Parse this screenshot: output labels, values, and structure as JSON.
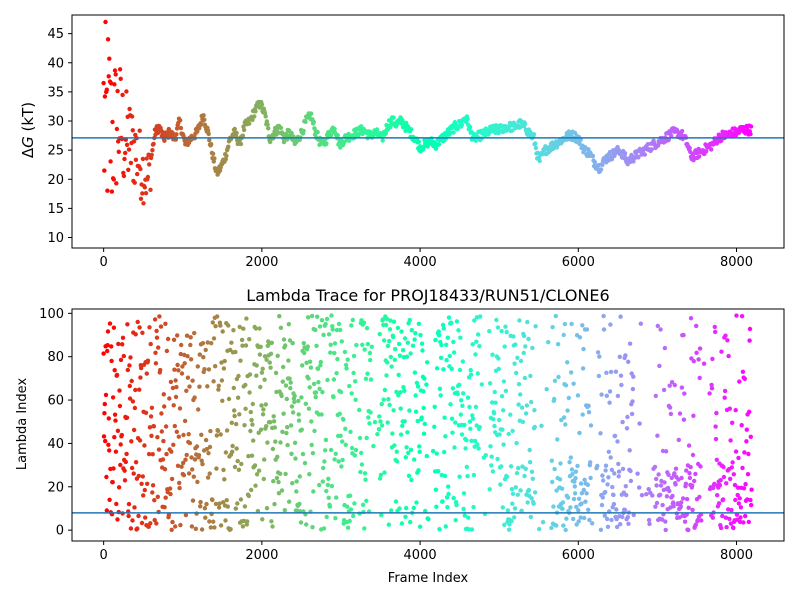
{
  "chart_data": [
    {
      "type": "scatter",
      "title": "",
      "xlabel": "",
      "ylabel": "ΔG (kT)",
      "ylabel_parts": {
        "delta": "Δ",
        "var": "G",
        "unit": " (kT)"
      },
      "xlim": [
        -400,
        8600
      ],
      "ylim": [
        8.2,
        48.2
      ],
      "xticks": [
        0,
        2000,
        4000,
        6000,
        8000
      ],
      "yticks": [
        10,
        15,
        20,
        25,
        30,
        35,
        40,
        45
      ],
      "reference_line": {
        "y": 27.1,
        "color": "#1f77b4"
      },
      "colormap": "rainbow_r (red at start → purple at end)",
      "n_frames": 8200,
      "series_envelope": {
        "x": [
          0,
          30,
          60,
          100,
          150,
          200,
          260,
          330,
          400,
          480,
          560,
          650,
          700,
          760,
          830,
          900,
          960,
          1030,
          1100,
          1180,
          1260,
          1320,
          1380,
          1430,
          1480,
          1540,
          1600,
          1660,
          1720,
          1780,
          1850,
          1920,
          1980,
          2040,
          2100,
          2160,
          2220,
          2280,
          2350,
          2420,
          2500,
          2560,
          2620,
          2680,
          2750,
          2800,
          2860,
          2920,
          2980,
          3050,
          3120,
          3200,
          3280,
          3360,
          3440,
          3520,
          3600,
          3650,
          3700,
          3760,
          3820,
          3880,
          3940,
          4000,
          4060,
          4120,
          4200,
          4280,
          4360,
          4440,
          4520,
          4560,
          4600,
          4640,
          4680,
          4760,
          4840,
          4920,
          5000,
          5080,
          5140,
          5200,
          5260,
          5320,
          5380,
          5440,
          5500,
          5540,
          5580,
          5640,
          5700,
          5760,
          5820,
          5880,
          5940,
          6000,
          6040,
          6080,
          6140,
          6200,
          6260,
          6300,
          6340,
          6400,
          6460,
          6520,
          6580,
          6620,
          6660,
          6720,
          6780,
          6840,
          6900,
          6960,
          7020,
          7080,
          7140,
          7200,
          7260,
          7320,
          7380,
          7420,
          7460,
          7520,
          7580,
          7640,
          7700,
          7760,
          7820,
          7880,
          7940,
          8000,
          8060,
          8120,
          8190
        ],
        "y": [
          30,
          28,
          31,
          27,
          29,
          30,
          27,
          26,
          25,
          22,
          20,
          28,
          29,
          27,
          28,
          27,
          30,
          26,
          27,
          28,
          31,
          28,
          24,
          21,
          22,
          24,
          27,
          28,
          26,
          29,
          30,
          32,
          33,
          31,
          27,
          28,
          29,
          27,
          28,
          26,
          28,
          30,
          31,
          28,
          26,
          26.5,
          28,
          29,
          26,
          27,
          27.5,
          28,
          28.5,
          27.5,
          28,
          27,
          29.5,
          30,
          29.5,
          30,
          29,
          28,
          27,
          25.5,
          26,
          26.5,
          26,
          27,
          28,
          29,
          29.5,
          30.5,
          30,
          28,
          27,
          27.5,
          28,
          28.5,
          28.5,
          29,
          29,
          29,
          29.5,
          29,
          28,
          27,
          23,
          24,
          25,
          25.5,
          26,
          26.5,
          27,
          27.5,
          27.5,
          27,
          26,
          25,
          24.5,
          23,
          22,
          22.5,
          23.5,
          24,
          24.5,
          25,
          24,
          23,
          23.5,
          24,
          24.5,
          25,
          25.5,
          26,
          26.5,
          27,
          27.5,
          28,
          28,
          27.5,
          26,
          24,
          24,
          24.5,
          25,
          25.5,
          26,
          27,
          27.5,
          27.5,
          28,
          28,
          28.5,
          28.5,
          28.5
        ]
      }
    },
    {
      "type": "scatter",
      "title": "Lambda Trace for PROJ18433/RUN51/CLONE6",
      "xlabel": "Frame Index",
      "ylabel": "Lambda Index",
      "xlim": [
        -400,
        8600
      ],
      "ylim": [
        -5,
        102
      ],
      "xticks": [
        0,
        2000,
        4000,
        6000,
        8000
      ],
      "yticks": [
        0,
        20,
        40,
        60,
        80,
        100
      ],
      "reference_line": {
        "y": 8,
        "color": "#1f77b4"
      },
      "colormap": "rainbow_r (red at start → purple at end)",
      "n_frames": 8200,
      "value_range": [
        0,
        99
      ]
    }
  ]
}
